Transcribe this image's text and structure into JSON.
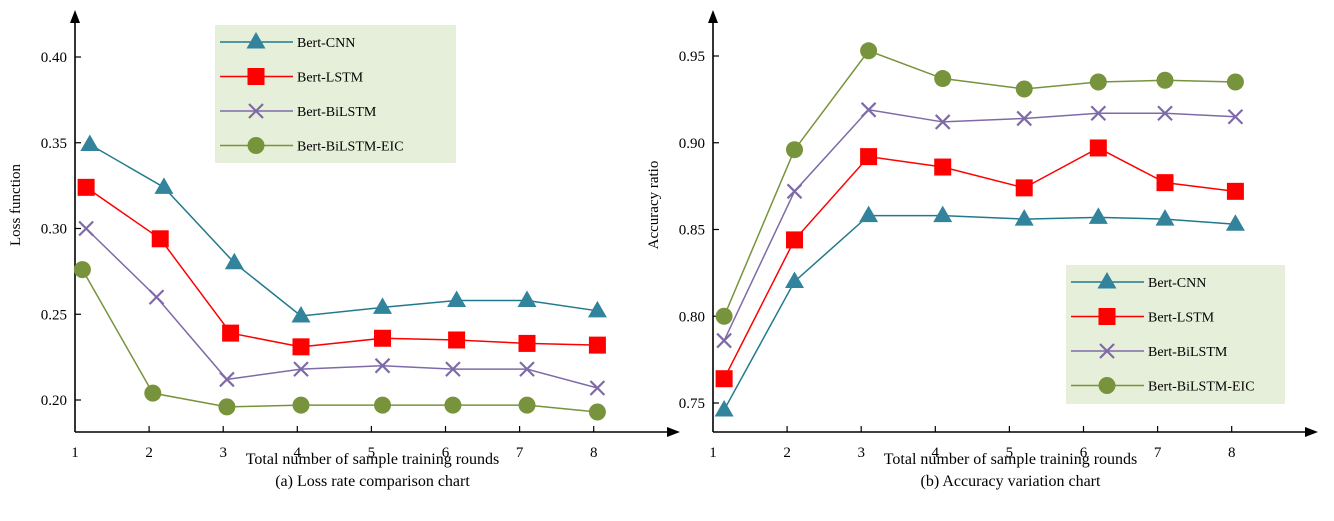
{
  "chart_data": [
    {
      "type": "line",
      "title": "",
      "caption": "(a) Loss rate comparison chart",
      "xlabel": "Total number of sample training rounds",
      "ylabel": "Loss function",
      "x_ticks": [
        "1",
        "2",
        "3",
        "4",
        "5",
        "6",
        "7",
        "8"
      ],
      "y_ticks": [
        "0.20",
        "0.25",
        "0.30",
        "0.35",
        "0.40"
      ],
      "ylim": [
        0.185,
        0.425
      ],
      "legend_position": "top-right",
      "legend_bg": "#e6efd9",
      "series": [
        {
          "name": "Bert-CNN",
          "marker": "triangle",
          "color": "#217a8c",
          "marker_color": "#31849b",
          "x": [
            1.2,
            2.2,
            3.15,
            4.05,
            5.15,
            6.15,
            7.1,
            8.05
          ],
          "values": [
            0.349,
            0.324,
            0.28,
            0.249,
            0.254,
            0.258,
            0.258,
            0.252
          ]
        },
        {
          "name": "Bert-LSTM",
          "marker": "square",
          "color": "#ff0000",
          "marker_color": "#ff0000",
          "x": [
            1.15,
            2.15,
            3.1,
            4.05,
            5.15,
            6.15,
            7.1,
            8.05
          ],
          "values": [
            0.324,
            0.294,
            0.239,
            0.231,
            0.236,
            0.235,
            0.233,
            0.232
          ]
        },
        {
          "name": "Bert-BiLSTM",
          "marker": "cross",
          "color": "#7f6aa8",
          "marker_color": "#7f6aa8",
          "x": [
            1.15,
            2.1,
            3.05,
            4.05,
            5.15,
            6.1,
            7.1,
            8.05
          ],
          "values": [
            0.3,
            0.26,
            0.212,
            0.218,
            0.22,
            0.218,
            0.218,
            0.207
          ]
        },
        {
          "name": "Bert-BiLSTM-EIC",
          "marker": "circle",
          "color": "#77933c",
          "marker_color": "#77933c",
          "x": [
            1.1,
            2.05,
            3.05,
            4.05,
            5.15,
            6.1,
            7.1,
            8.05
          ],
          "values": [
            0.276,
            0.204,
            0.196,
            0.197,
            0.197,
            0.197,
            0.197,
            0.193
          ]
        }
      ]
    },
    {
      "type": "line",
      "title": "",
      "caption": "(b) Accuracy variation chart",
      "xlabel": "Total number of sample training rounds",
      "ylabel": "Accuracy ratio",
      "x_ticks": [
        "1",
        "2",
        "3",
        "4",
        "5",
        "6",
        "7",
        "8"
      ],
      "y_ticks": [
        "0.75",
        "0.80",
        "0.85",
        "0.90",
        "0.95"
      ],
      "ylim": [
        0.74,
        0.98
      ],
      "legend_position": "bottom-right",
      "legend_bg": "#e6efd9",
      "series": [
        {
          "name": "Bert-CNN",
          "marker": "triangle",
          "color": "#217a8c",
          "marker_color": "#31849b",
          "x": [
            1.15,
            2.1,
            3.1,
            4.1,
            5.2,
            6.2,
            7.1,
            8.05
          ],
          "values": [
            0.746,
            0.82,
            0.858,
            0.858,
            0.856,
            0.857,
            0.856,
            0.853
          ]
        },
        {
          "name": "Bert-LSTM",
          "marker": "square",
          "color": "#ff0000",
          "marker_color": "#ff0000",
          "x": [
            1.15,
            2.1,
            3.1,
            4.1,
            5.2,
            6.2,
            7.1,
            8.05
          ],
          "values": [
            0.764,
            0.844,
            0.892,
            0.886,
            0.874,
            0.897,
            0.877,
            0.872
          ]
        },
        {
          "name": "Bert-BiLSTM",
          "marker": "cross",
          "color": "#7f6aa8",
          "marker_color": "#7f6aa8",
          "x": [
            1.15,
            2.1,
            3.1,
            4.1,
            5.2,
            6.2,
            7.1,
            8.05
          ],
          "values": [
            0.786,
            0.872,
            0.919,
            0.912,
            0.914,
            0.917,
            0.917,
            0.915
          ]
        },
        {
          "name": "Bert-BiLSTM-EIC",
          "marker": "circle",
          "color": "#77933c",
          "marker_color": "#77933c",
          "x": [
            1.15,
            2.1,
            3.1,
            4.1,
            5.2,
            6.2,
            7.1,
            8.05
          ],
          "values": [
            0.8,
            0.896,
            0.953,
            0.937,
            0.931,
            0.935,
            0.936,
            0.935
          ]
        }
      ]
    }
  ]
}
